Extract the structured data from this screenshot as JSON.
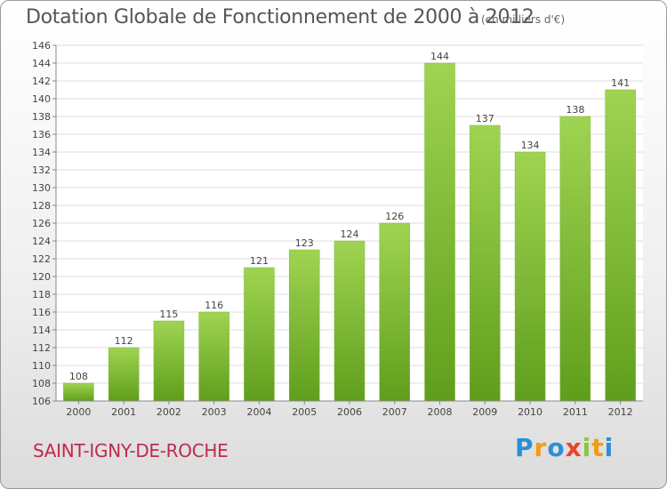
{
  "header": {
    "title": "Dotation Globale de Fonctionnement de 2000 à 2012",
    "unit": "(en milliers d'€)"
  },
  "footer": {
    "commune": "SAINT-IGNY-DE-ROCHE",
    "brand": "Proxiti",
    "brand_letters": [
      {
        "char": "P",
        "color": "#2a8fd6"
      },
      {
        "char": "r",
        "color": "#f39c12"
      },
      {
        "char": "o",
        "color": "#2a8fd6"
      },
      {
        "char": "x",
        "color": "#e8452c"
      },
      {
        "char": "i",
        "color": "#8cc63f"
      },
      {
        "char": "t",
        "color": "#f39c12"
      },
      {
        "char": "i",
        "color": "#2a8fd6"
      }
    ]
  },
  "chart_data": {
    "type": "bar",
    "title": "Dotation Globale de Fonctionnement de 2000 à 2012",
    "subtitle": "(en milliers d'€)",
    "categories": [
      "2000",
      "2001",
      "2002",
      "2003",
      "2004",
      "2005",
      "2006",
      "2007",
      "2008",
      "2009",
      "2010",
      "2011",
      "2012"
    ],
    "values": [
      108,
      112,
      115,
      116,
      121,
      123,
      124,
      126,
      144,
      137,
      134,
      138,
      141
    ],
    "ylim": [
      106,
      146
    ],
    "yticks": [
      106,
      108,
      110,
      112,
      114,
      116,
      118,
      120,
      122,
      124,
      126,
      128,
      130,
      132,
      134,
      136,
      138,
      140,
      142,
      144,
      146
    ],
    "grid": true,
    "bar_color": "#8cc63f"
  }
}
